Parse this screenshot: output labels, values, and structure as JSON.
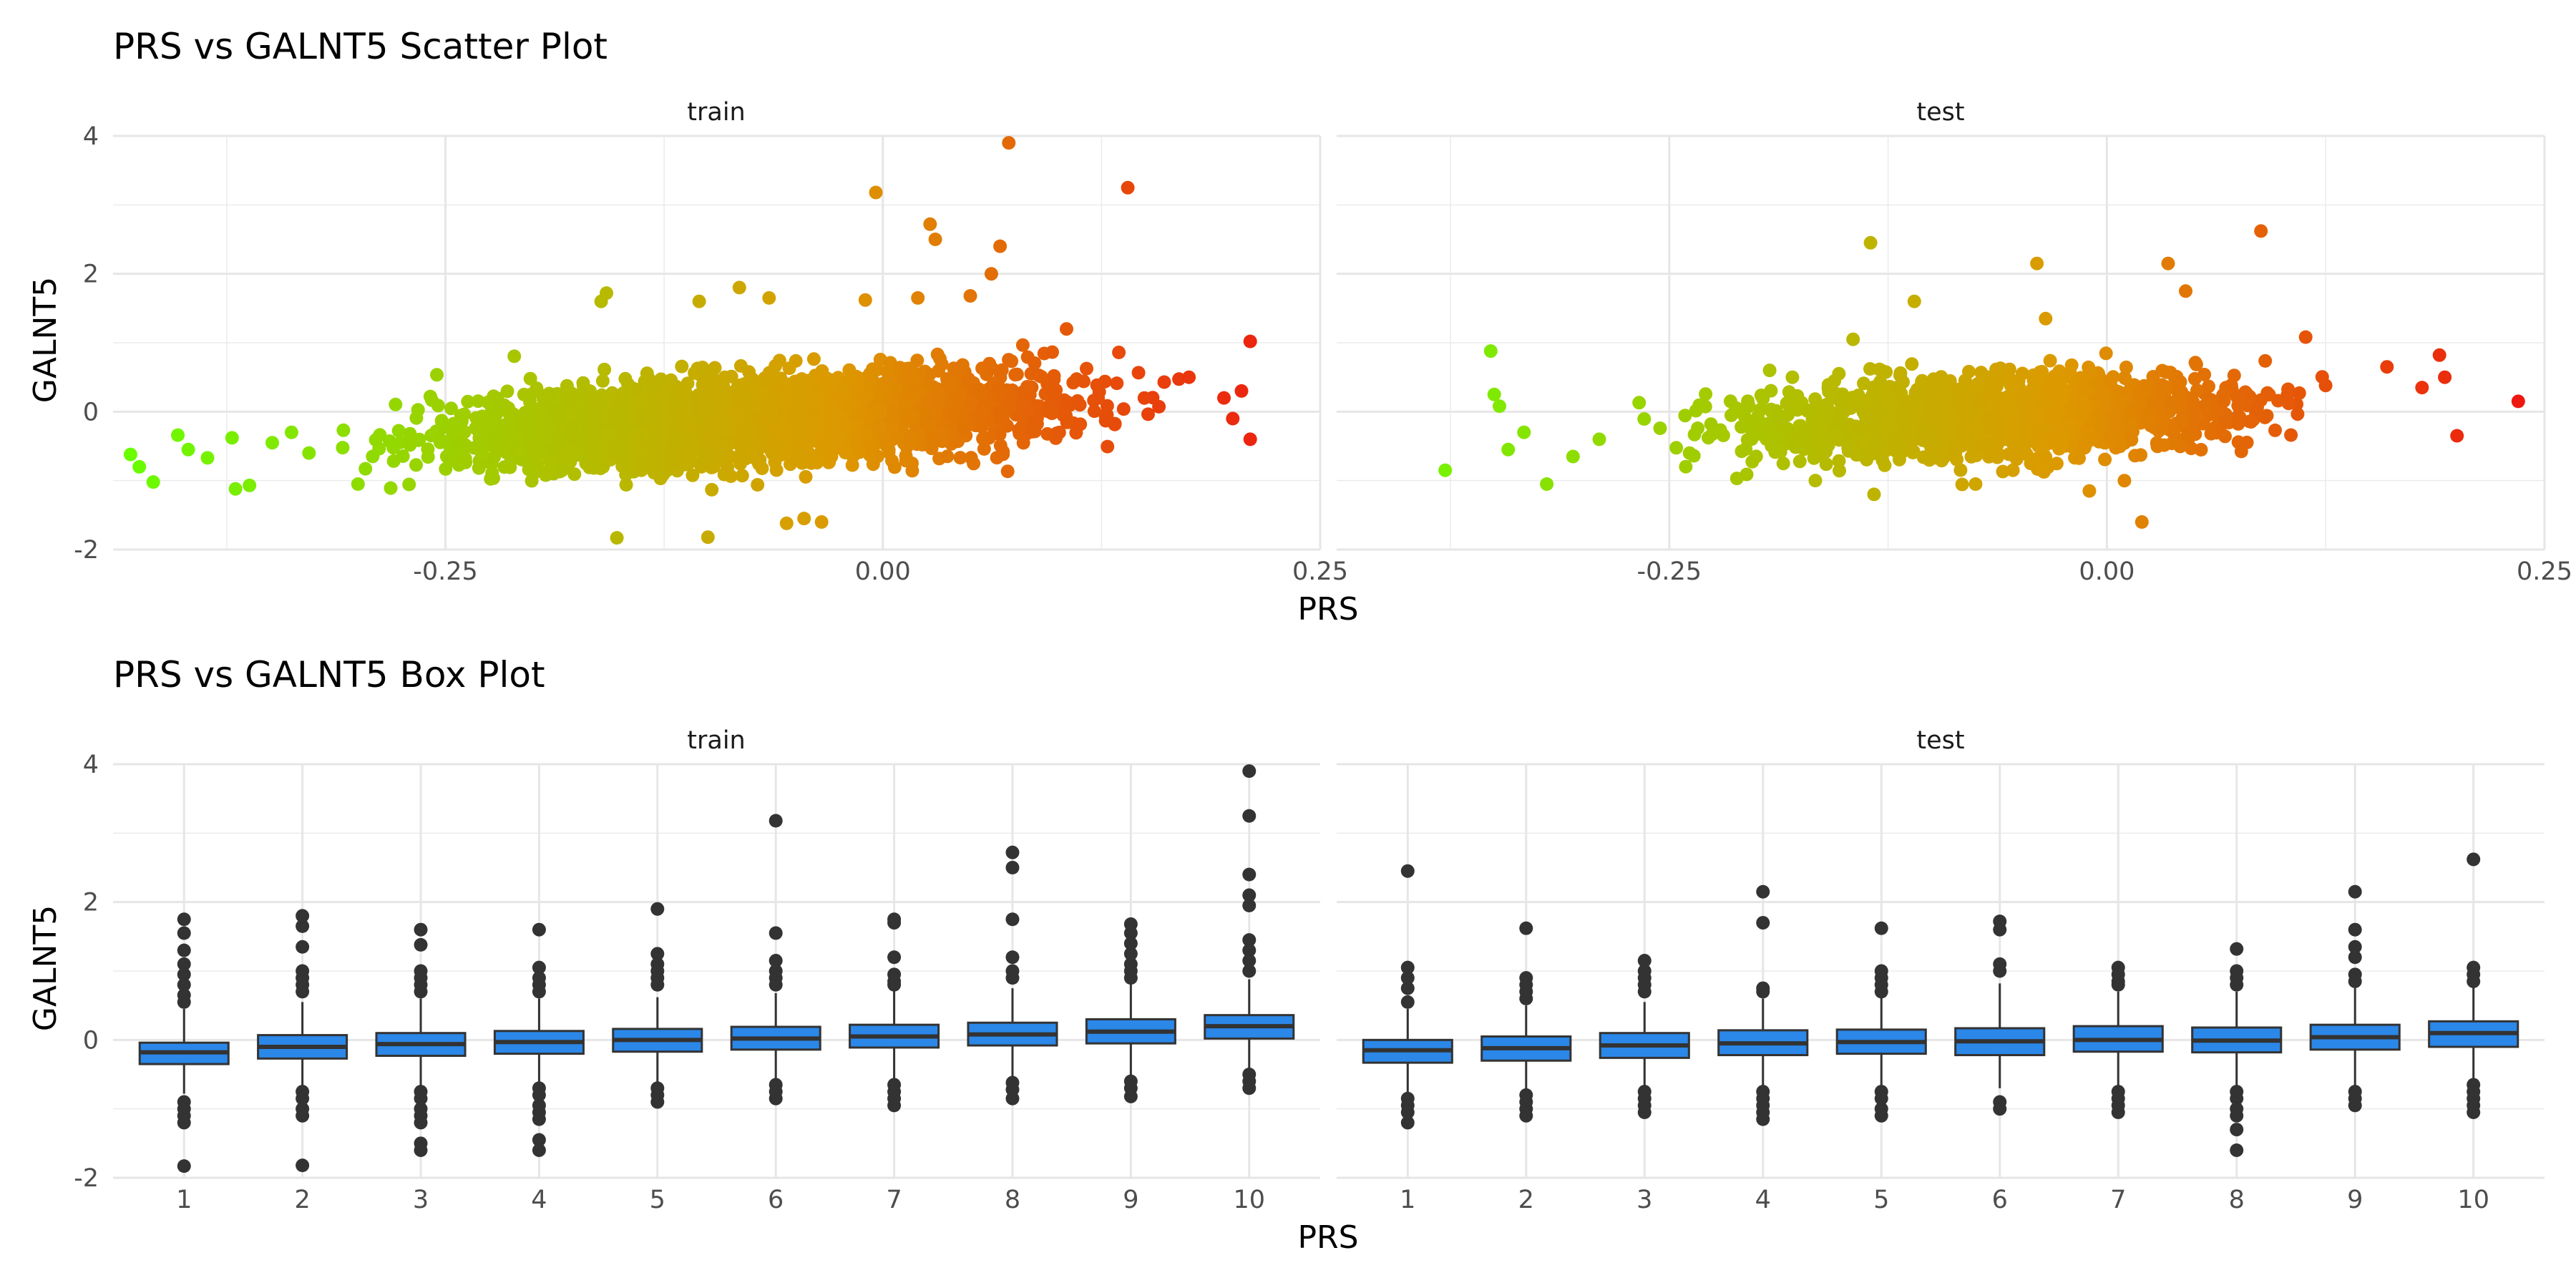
{
  "chart_data": [
    {
      "type": "scatter",
      "title": "PRS vs GALNT5 Scatter Plot",
      "xlabel": "PRS",
      "ylabel": "GALNT5",
      "panels": [
        "train",
        "test"
      ],
      "xlim": [
        -0.44,
        0.25
      ],
      "ylim": [
        -2.0,
        4.0
      ],
      "x_ticks": [
        -0.25,
        0.0,
        0.25
      ],
      "x_tick_labels": [
        "-0.25",
        "0.00",
        "0.25"
      ],
      "y_ticks": [
        -2,
        0,
        2,
        4
      ],
      "y_tick_labels": [
        "-2",
        "0",
        "2",
        "4"
      ],
      "grid": true,
      "legend": "none",
      "color_scale": {
        "low": "#66ff00",
        "mid": "#dd9900",
        "high": "#ee1111",
        "mapped_to": "PRS"
      },
      "cloud": {
        "train": {
          "n": 2600,
          "x_range": [
            -0.33,
            0.18
          ],
          "y_center_at_x0": 0.0,
          "slope": 1.5,
          "y_spread": 0.3
        },
        "test": {
          "n": 1500,
          "x_range": [
            -0.28,
            0.15
          ],
          "y_center_at_x0": 0.0,
          "slope": 1.2,
          "y_spread": 0.3
        }
      },
      "series": [
        {
          "panel": "train",
          "points": [
            [
              -0.43,
              -0.62
            ],
            [
              -0.425,
              -0.8
            ],
            [
              -0.417,
              -1.02
            ],
            [
              -0.403,
              -0.34
            ],
            [
              -0.397,
              -0.55
            ],
            [
              -0.386,
              -0.67
            ],
            [
              -0.372,
              -0.38
            ],
            [
              -0.37,
              -1.12
            ],
            [
              -0.362,
              -1.07
            ],
            [
              -0.349,
              -0.45
            ],
            [
              -0.338,
              -0.3
            ],
            [
              -0.328,
              -0.6
            ],
            [
              -0.3,
              -1.05
            ],
            [
              -0.161,
              1.6
            ],
            [
              -0.158,
              1.72
            ],
            [
              -0.152,
              -1.83
            ],
            [
              -0.105,
              1.6
            ],
            [
              -0.1,
              -1.82
            ],
            [
              -0.082,
              1.8
            ],
            [
              -0.065,
              1.65
            ],
            [
              -0.055,
              -1.62
            ],
            [
              -0.045,
              -1.55
            ],
            [
              -0.035,
              -1.6
            ],
            [
              -0.01,
              1.62
            ],
            [
              -0.004,
              3.18
            ],
            [
              0.02,
              1.65
            ],
            [
              0.027,
              2.72
            ],
            [
              0.03,
              2.5
            ],
            [
              0.05,
              1.68
            ],
            [
              0.062,
              2.0
            ],
            [
              0.067,
              2.4
            ],
            [
              0.072,
              3.9
            ],
            [
              0.105,
              1.2
            ],
            [
              0.14,
              3.25
            ],
            [
              0.175,
              0.5
            ],
            [
              0.195,
              0.2
            ],
            [
              0.2,
              -0.1
            ],
            [
              0.21,
              1.02
            ],
            [
              0.21,
              -0.4
            ],
            [
              0.205,
              0.3
            ]
          ]
        },
        {
          "panel": "test",
          "points": [
            [
              -0.378,
              -0.85
            ],
            [
              -0.352,
              0.88
            ],
            [
              -0.35,
              0.25
            ],
            [
              -0.347,
              0.08
            ],
            [
              -0.342,
              -0.55
            ],
            [
              -0.333,
              -0.3
            ],
            [
              -0.32,
              -1.05
            ],
            [
              -0.305,
              -0.65
            ],
            [
              -0.29,
              -0.4
            ],
            [
              -0.145,
              1.05
            ],
            [
              -0.135,
              2.45
            ],
            [
              -0.133,
              -1.2
            ],
            [
              -0.11,
              1.6
            ],
            [
              -0.075,
              -1.05
            ],
            [
              -0.04,
              2.15
            ],
            [
              -0.035,
              1.35
            ],
            [
              -0.01,
              -1.15
            ],
            [
              0.01,
              -1.0
            ],
            [
              0.02,
              -1.6
            ],
            [
              0.035,
              2.15
            ],
            [
              0.045,
              1.75
            ],
            [
              0.088,
              2.62
            ],
            [
              0.16,
              0.65
            ],
            [
              0.18,
              0.35
            ],
            [
              0.19,
              0.82
            ],
            [
              0.193,
              0.5
            ],
            [
              0.2,
              -0.35
            ],
            [
              0.235,
              0.15
            ]
          ]
        }
      ]
    },
    {
      "type": "box",
      "title": "PRS vs GALNT5 Box Plot",
      "xlabel": "PRS",
      "ylabel": "GALNT5",
      "panels": [
        "train",
        "test"
      ],
      "categories": [
        "1",
        "2",
        "3",
        "4",
        "5",
        "6",
        "7",
        "8",
        "9",
        "10"
      ],
      "ylim": [
        -2.0,
        4.0
      ],
      "y_ticks": [
        -2,
        0,
        2,
        4
      ],
      "y_tick_labels": [
        "-2",
        "0",
        "2",
        "4"
      ],
      "grid": true,
      "legend": "none",
      "box_fill": "#2b87e8",
      "box_line": "#333333",
      "series": [
        {
          "panel": "train",
          "boxes": [
            {
              "q1": -0.35,
              "median": -0.18,
              "q3": -0.04,
              "lo": -0.78,
              "hi": 0.45,
              "outliers": [
                1.75,
                1.55,
                1.3,
                1.1,
                0.95,
                0.8,
                0.65,
                0.55,
                -0.9,
                -1.0,
                -1.1,
                -1.2,
                -1.83
              ]
            },
            {
              "q1": -0.27,
              "median": -0.1,
              "q3": 0.07,
              "lo": -0.7,
              "hi": 0.55,
              "outliers": [
                1.8,
                1.65,
                1.35,
                1.0,
                0.9,
                0.8,
                0.7,
                -0.75,
                -0.85,
                -1.0,
                -1.1,
                -1.82
              ]
            },
            {
              "q1": -0.23,
              "median": -0.06,
              "q3": 0.1,
              "lo": -0.68,
              "hi": 0.6,
              "outliers": [
                1.6,
                1.38,
                1.0,
                0.9,
                0.8,
                0.7,
                -0.75,
                -0.85,
                -1.0,
                -1.1,
                -1.2,
                -1.5,
                -1.6
              ]
            },
            {
              "q1": -0.2,
              "median": -0.03,
              "q3": 0.13,
              "lo": -0.65,
              "hi": 0.6,
              "outliers": [
                1.6,
                1.05,
                0.9,
                0.8,
                0.7,
                -0.7,
                -0.8,
                -0.95,
                -1.05,
                -1.15,
                -1.45,
                -1.6
              ]
            },
            {
              "q1": -0.17,
              "median": 0.0,
              "q3": 0.16,
              "lo": -0.62,
              "hi": 0.62,
              "outliers": [
                1.9,
                1.25,
                1.1,
                1.0,
                0.9,
                0.8,
                -0.7,
                -0.8,
                -0.9
              ]
            },
            {
              "q1": -0.14,
              "median": 0.02,
              "q3": 0.19,
              "lo": -0.6,
              "hi": 0.68,
              "outliers": [
                3.18,
                1.55,
                1.15,
                1.0,
                0.9,
                0.8,
                -0.65,
                -0.75,
                -0.85
              ]
            },
            {
              "q1": -0.11,
              "median": 0.05,
              "q3": 0.22,
              "lo": -0.58,
              "hi": 0.72,
              "outliers": [
                1.75,
                1.7,
                1.2,
                0.95,
                0.85,
                0.8,
                -0.65,
                -0.75,
                -0.85,
                -0.95
              ]
            },
            {
              "q1": -0.08,
              "median": 0.08,
              "q3": 0.25,
              "lo": -0.55,
              "hi": 0.75,
              "outliers": [
                2.72,
                2.5,
                1.75,
                1.2,
                1.0,
                0.9,
                -0.62,
                -0.72,
                -0.85
              ]
            },
            {
              "q1": -0.05,
              "median": 0.12,
              "q3": 0.3,
              "lo": -0.52,
              "hi": 0.82,
              "outliers": [
                1.68,
                1.55,
                1.4,
                1.25,
                1.1,
                1.0,
                0.9,
                -0.6,
                -0.7,
                -0.82
              ]
            },
            {
              "q1": 0.02,
              "median": 0.2,
              "q3": 0.36,
              "lo": -0.45,
              "hi": 0.88,
              "outliers": [
                3.9,
                3.25,
                2.4,
                2.1,
                1.95,
                1.45,
                1.3,
                1.15,
                1.0,
                -0.5,
                -0.6,
                -0.7
              ]
            }
          ]
        },
        {
          "panel": "test",
          "boxes": [
            {
              "q1": -0.33,
              "median": -0.15,
              "q3": 0.0,
              "lo": -0.8,
              "hi": 0.45,
              "outliers": [
                2.45,
                1.05,
                0.9,
                0.75,
                0.55,
                -0.85,
                -0.95,
                -1.05,
                -1.2
              ]
            },
            {
              "q1": -0.3,
              "median": -0.12,
              "q3": 0.05,
              "lo": -0.75,
              "hi": 0.5,
              "outliers": [
                1.62,
                0.9,
                0.8,
                0.7,
                0.6,
                -0.8,
                -0.9,
                -1.0,
                -1.1
              ]
            },
            {
              "q1": -0.26,
              "median": -0.08,
              "q3": 0.1,
              "lo": -0.72,
              "hi": 0.55,
              "outliers": [
                1.15,
                1.0,
                0.9,
                0.8,
                0.7,
                -0.75,
                -0.85,
                -0.95,
                -1.05
              ]
            },
            {
              "q1": -0.22,
              "median": -0.05,
              "q3": 0.14,
              "lo": -0.7,
              "hi": 0.6,
              "outliers": [
                2.15,
                1.7,
                0.75,
                0.7,
                -0.75,
                -0.85,
                -0.95,
                -1.05,
                -1.15
              ]
            },
            {
              "q1": -0.2,
              "median": -0.03,
              "q3": 0.15,
              "lo": -0.68,
              "hi": 0.62,
              "outliers": [
                1.62,
                1.0,
                0.9,
                0.8,
                0.7,
                -0.75,
                -0.85,
                -1.0,
                -1.1
              ]
            },
            {
              "q1": -0.22,
              "median": -0.02,
              "q3": 0.17,
              "lo": -0.7,
              "hi": 0.82,
              "outliers": [
                1.72,
                1.6,
                1.1,
                1.0,
                -0.9,
                -1.0
              ]
            },
            {
              "q1": -0.17,
              "median": 0.0,
              "q3": 0.2,
              "lo": -0.68,
              "hi": 0.7,
              "outliers": [
                1.05,
                0.95,
                0.85,
                0.8,
                -0.75,
                -0.85,
                -0.95,
                -1.05
              ]
            },
            {
              "q1": -0.18,
              "median": -0.01,
              "q3": 0.18,
              "lo": -0.7,
              "hi": 0.7,
              "outliers": [
                1.32,
                1.0,
                0.9,
                0.8,
                -0.75,
                -0.85,
                -1.0,
                -1.1,
                -1.3,
                -1.6
              ]
            },
            {
              "q1": -0.14,
              "median": 0.04,
              "q3": 0.22,
              "lo": -0.68,
              "hi": 0.75,
              "outliers": [
                2.15,
                1.6,
                1.35,
                1.2,
                0.95,
                0.85,
                -0.75,
                -0.85,
                -0.95
              ]
            },
            {
              "q1": -0.1,
              "median": 0.1,
              "q3": 0.27,
              "lo": -0.62,
              "hi": 0.8,
              "outliers": [
                2.62,
                1.05,
                0.95,
                0.85,
                -0.65,
                -0.75,
                -0.85,
                -0.95,
                -1.05
              ]
            }
          ]
        }
      ]
    }
  ]
}
